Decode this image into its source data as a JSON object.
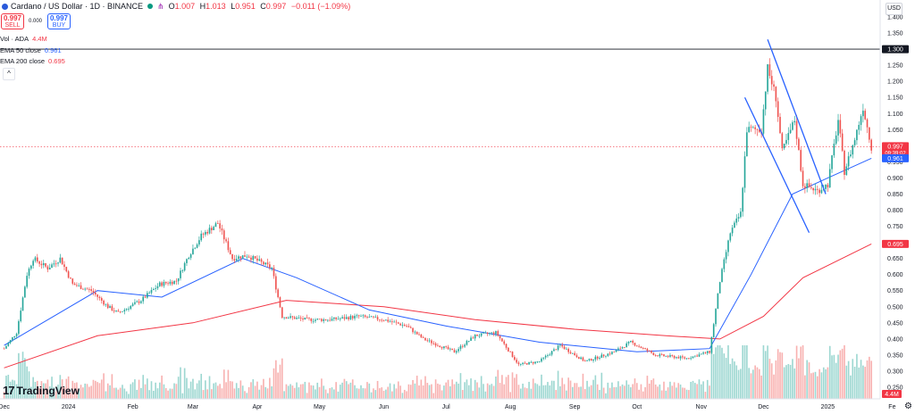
{
  "header": {
    "symbol": "Cardano / US Dollar · 1D · BINANCE",
    "open_label": "O",
    "open": "1.007",
    "high_label": "H",
    "high": "1.013",
    "low_label": "L",
    "low": "0.951",
    "close_label": "C",
    "close": "0.997",
    "change": "−0.011 (−1.09%)"
  },
  "trade": {
    "sell_price": "0.997",
    "sell_label": "SELL",
    "spread": "0.000",
    "buy_price": "0.997",
    "buy_label": "BUY"
  },
  "indicators": {
    "vol_label": "Vol · ADA",
    "vol_value": "4.4M",
    "ema50_label": "EMA 50 close",
    "ema50_value": "0.961",
    "ema200_label": "EMA 200 close",
    "ema200_value": "0.695"
  },
  "currency": "USD",
  "branding": "TradingView",
  "colors": {
    "up": "#26a69a",
    "down": "#ef5350",
    "ema50": "#2962ff",
    "ema200": "#f23645",
    "hline": "#131722",
    "trend": "#2962ff"
  },
  "chart_data": {
    "type": "candlestick",
    "y_axis_ticks": [
      "1.400",
      "1.350",
      "1.300",
      "1.250",
      "1.200",
      "1.150",
      "1.100",
      "1.050",
      "1.000",
      "0.950",
      "0.900",
      "0.850",
      "0.800",
      "0.750",
      "0.700",
      "0.650",
      "0.600",
      "0.550",
      "0.500",
      "0.450",
      "0.400",
      "0.350",
      "0.300",
      "0.250"
    ],
    "y_range": [
      0.25,
      1.4
    ],
    "x_axis_labels": [
      "Dec",
      "2024",
      "Feb",
      "Mar",
      "Apr",
      "May",
      "Jun",
      "Jul",
      "Aug",
      "Sep",
      "Oct",
      "Nov",
      "Dec",
      "2025",
      "Fe"
    ],
    "horizontal_line": {
      "value": 1.3,
      "label": "1.300"
    },
    "price_labels": [
      {
        "value": 0.997,
        "label": "0.997",
        "sublabel": "09:39:02",
        "color": "#f23645"
      },
      {
        "value": 0.961,
        "label": "0.961",
        "color": "#2962ff"
      },
      {
        "value": 0.695,
        "label": "0.695",
        "color": "#f23645"
      }
    ],
    "volume_label": "4.4M",
    "anchors": [
      {
        "date": "2023-12-01",
        "close": 0.37
      },
      {
        "date": "2023-12-07",
        "close": 0.42
      },
      {
        "date": "2023-12-12",
        "close": 0.6
      },
      {
        "date": "2023-12-15",
        "close": 0.65
      },
      {
        "date": "2023-12-22",
        "close": 0.62
      },
      {
        "date": "2023-12-28",
        "close": 0.65
      },
      {
        "date": "2024-01-03",
        "close": 0.57
      },
      {
        "date": "2024-01-12",
        "close": 0.55
      },
      {
        "date": "2024-01-20",
        "close": 0.5
      },
      {
        "date": "2024-01-25",
        "close": 0.48
      },
      {
        "date": "2024-02-05",
        "close": 0.52
      },
      {
        "date": "2024-02-14",
        "close": 0.57
      },
      {
        "date": "2024-02-22",
        "close": 0.58
      },
      {
        "date": "2024-02-28",
        "close": 0.66
      },
      {
        "date": "2024-03-05",
        "close": 0.72
      },
      {
        "date": "2024-03-13",
        "close": 0.76
      },
      {
        "date": "2024-03-20",
        "close": 0.65
      },
      {
        "date": "2024-03-27",
        "close": 0.66
      },
      {
        "date": "2024-04-08",
        "close": 0.62
      },
      {
        "date": "2024-04-13",
        "close": 0.47
      },
      {
        "date": "2024-04-25",
        "close": 0.46
      },
      {
        "date": "2024-05-06",
        "close": 0.46
      },
      {
        "date": "2024-05-20",
        "close": 0.47
      },
      {
        "date": "2024-06-01",
        "close": 0.46
      },
      {
        "date": "2024-06-12",
        "close": 0.44
      },
      {
        "date": "2024-06-20",
        "close": 0.4
      },
      {
        "date": "2024-07-05",
        "close": 0.36
      },
      {
        "date": "2024-07-15",
        "close": 0.41
      },
      {
        "date": "2024-07-25",
        "close": 0.42
      },
      {
        "date": "2024-08-05",
        "close": 0.32
      },
      {
        "date": "2024-08-15",
        "close": 0.33
      },
      {
        "date": "2024-08-25",
        "close": 0.38
      },
      {
        "date": "2024-09-06",
        "close": 0.33
      },
      {
        "date": "2024-09-20",
        "close": 0.36
      },
      {
        "date": "2024-09-28",
        "close": 0.39
      },
      {
        "date": "2024-10-10",
        "close": 0.35
      },
      {
        "date": "2024-10-25",
        "close": 0.34
      },
      {
        "date": "2024-11-05",
        "close": 0.36
      },
      {
        "date": "2024-11-10",
        "close": 0.58
      },
      {
        "date": "2024-11-15",
        "close": 0.73
      },
      {
        "date": "2024-11-20",
        "close": 0.79
      },
      {
        "date": "2024-11-23",
        "close": 1.05
      },
      {
        "date": "2024-11-30",
        "close": 1.05
      },
      {
        "date": "2024-12-03",
        "close": 1.24
      },
      {
        "date": "2024-12-07",
        "close": 1.15
      },
      {
        "date": "2024-12-10",
        "close": 0.98
      },
      {
        "date": "2024-12-16",
        "close": 1.08
      },
      {
        "date": "2024-12-20",
        "close": 0.88
      },
      {
        "date": "2024-12-27",
        "close": 0.86
      },
      {
        "date": "2025-01-01",
        "close": 0.88
      },
      {
        "date": "2025-01-06",
        "close": 1.08
      },
      {
        "date": "2025-01-09",
        "close": 0.92
      },
      {
        "date": "2025-01-14",
        "close": 1.02
      },
      {
        "date": "2025-01-18",
        "close": 1.12
      },
      {
        "date": "2025-01-22",
        "close": 0.997
      }
    ],
    "ema50_path": [
      {
        "date": "2023-12-01",
        "value": 0.38
      },
      {
        "date": "2024-01-15",
        "value": 0.55
      },
      {
        "date": "2024-02-15",
        "value": 0.53
      },
      {
        "date": "2024-03-25",
        "value": 0.65
      },
      {
        "date": "2024-04-20",
        "value": 0.59
      },
      {
        "date": "2024-05-25",
        "value": 0.49
      },
      {
        "date": "2024-07-01",
        "value": 0.44
      },
      {
        "date": "2024-08-15",
        "value": 0.39
      },
      {
        "date": "2024-10-01",
        "value": 0.36
      },
      {
        "date": "2024-11-05",
        "value": 0.37
      },
      {
        "date": "2024-11-25",
        "value": 0.6
      },
      {
        "date": "2024-12-15",
        "value": 0.85
      },
      {
        "date": "2025-01-01",
        "value": 0.9
      },
      {
        "date": "2025-01-22",
        "value": 0.961
      }
    ],
    "ema200_path": [
      {
        "date": "2023-12-01",
        "value": 0.31
      },
      {
        "date": "2024-01-15",
        "value": 0.41
      },
      {
        "date": "2024-03-01",
        "value": 0.45
      },
      {
        "date": "2024-04-15",
        "value": 0.52
      },
      {
        "date": "2024-06-01",
        "value": 0.5
      },
      {
        "date": "2024-07-15",
        "value": 0.46
      },
      {
        "date": "2024-09-01",
        "value": 0.43
      },
      {
        "date": "2024-10-15",
        "value": 0.41
      },
      {
        "date": "2024-11-10",
        "value": 0.4
      },
      {
        "date": "2024-12-01",
        "value": 0.47
      },
      {
        "date": "2024-12-20",
        "value": 0.59
      },
      {
        "date": "2025-01-22",
        "value": 0.695
      }
    ],
    "trendlines": [
      {
        "from": {
          "date": "2024-12-03",
          "value": 1.33
        },
        "to": {
          "date": "2024-12-31",
          "value": 0.85
        }
      },
      {
        "from": {
          "date": "2024-11-22",
          "value": 1.15
        },
        "to": {
          "date": "2024-12-23",
          "value": 0.73
        }
      }
    ]
  }
}
